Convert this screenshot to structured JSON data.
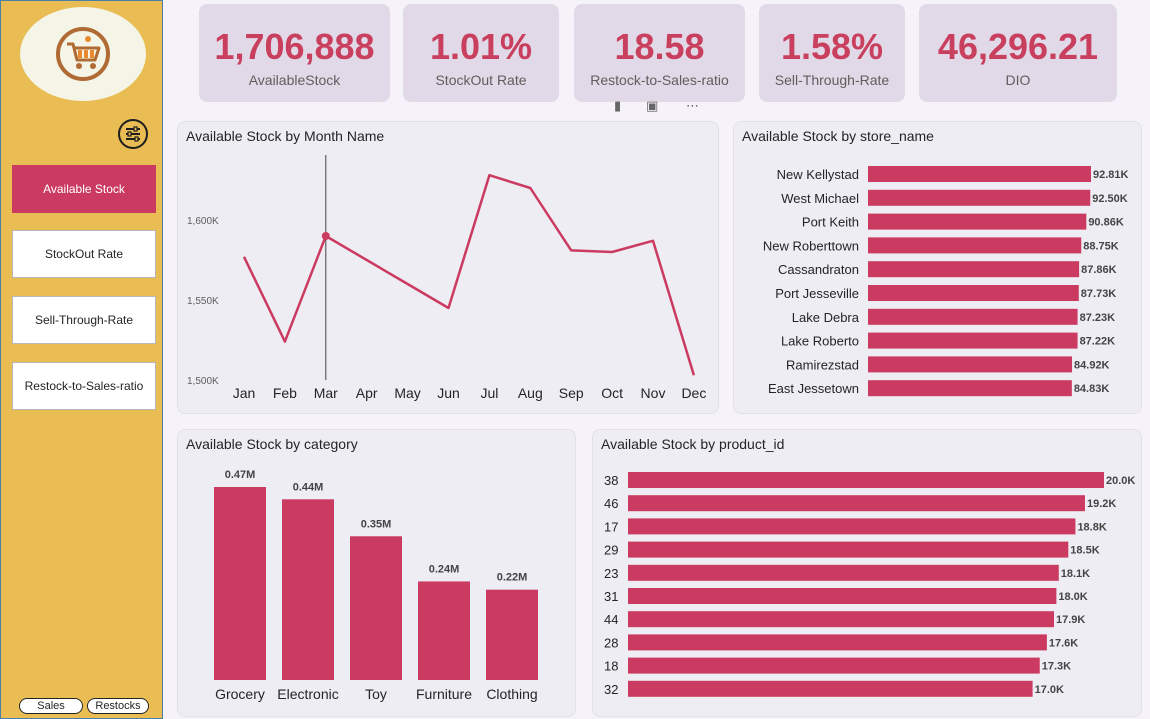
{
  "sidebar": {
    "nav": [
      {
        "label": "Available Stock",
        "active": true
      },
      {
        "label": "StockOut Rate",
        "active": false
      },
      {
        "label": "Sell-Through-Rate",
        "active": false
      },
      {
        "label": "Restock-to-Sales-ratio",
        "active": false
      }
    ],
    "pages": [
      "Sales",
      "Restocks"
    ],
    "logo_icon": "shopping-cart-icon",
    "filter_icon": "sliders-icon"
  },
  "kpis": [
    {
      "value": "1,706,888",
      "label": "AvailableStock"
    },
    {
      "value": "1.01%",
      "label": "StockOut Rate"
    },
    {
      "value": "18.58",
      "label": "Restock-to-Sales-ratio"
    },
    {
      "value": "1.58%",
      "label": "Sell-Through-Rate"
    },
    {
      "value": "46,296.21",
      "label": "DIO"
    }
  ],
  "colors": {
    "accent": "#cb3a61",
    "sidebar": "#e9bd54",
    "card": "#e1d9e8"
  },
  "chart_data": [
    {
      "type": "line",
      "title": "Available Stock by Month Name",
      "categories": [
        "Jan",
        "Feb",
        "Mar",
        "Apr",
        "May",
        "Jun",
        "Jul",
        "Aug",
        "Sep",
        "Oct",
        "Nov",
        "Dec"
      ],
      "values": [
        1577000,
        1524000,
        1590000,
        1575000,
        1560000,
        1545000,
        1628000,
        1620000,
        1581000,
        1580000,
        1587000,
        1503000
      ],
      "y_ticks": [
        "1,500K",
        "1,550K",
        "1,600K"
      ],
      "ylim": [
        1500000,
        1630000
      ],
      "highlighted": "Mar"
    },
    {
      "type": "bar",
      "orientation": "horizontal",
      "title": "Available Stock by store_name",
      "categories": [
        "New Kellystad",
        "West Michael",
        "Port Keith",
        "New Roberttown",
        "Cassandraton",
        "Port Jesseville",
        "Lake Debra",
        "Lake Roberto",
        "Ramirezstad",
        "East Jessetown"
      ],
      "values": [
        92810,
        92500,
        90860,
        88750,
        87860,
        87730,
        87230,
        87220,
        84920,
        84830
      ],
      "labels": [
        "92.81K",
        "92.50K",
        "90.86K",
        "88.75K",
        "87.86K",
        "87.73K",
        "87.23K",
        "87.22K",
        "84.92K",
        "84.83K"
      ]
    },
    {
      "type": "bar",
      "title": "Available Stock by category",
      "categories": [
        "Grocery",
        "Electronic",
        "Toy",
        "Furniture",
        "Clothing"
      ],
      "values": [
        470000,
        440000,
        350000,
        240000,
        220000
      ],
      "labels": [
        "0.47M",
        "0.44M",
        "0.35M",
        "0.24M",
        "0.22M"
      ]
    },
    {
      "type": "bar",
      "orientation": "horizontal",
      "title": "Available Stock by product_id",
      "categories": [
        "38",
        "46",
        "17",
        "29",
        "23",
        "31",
        "44",
        "28",
        "18",
        "32"
      ],
      "values": [
        20000,
        19200,
        18800,
        18500,
        18100,
        18000,
        17900,
        17600,
        17300,
        17000
      ],
      "labels": [
        "20.0K",
        "19.2K",
        "18.8K",
        "18.5K",
        "18.1K",
        "18.0K",
        "17.9K",
        "17.6K",
        "17.3K",
        "17.0K"
      ]
    }
  ]
}
